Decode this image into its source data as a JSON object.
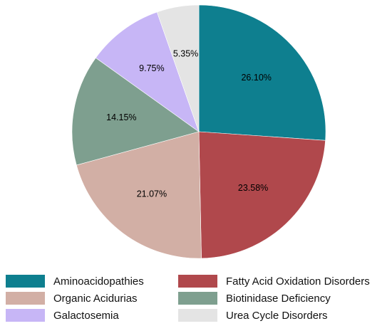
{
  "chart_data": {
    "type": "pie",
    "title": "",
    "slices": [
      {
        "label": "Aminoacidopathies",
        "value": 26.1,
        "value_label": "26.10%",
        "color": "#0e7f8f"
      },
      {
        "label": "Fatty Acid Oxidation Disorders",
        "value": 23.58,
        "value_label": "23.58%",
        "color": "#b0484c"
      },
      {
        "label": "Organic Acidurias",
        "value": 21.07,
        "value_label": "21.07%",
        "color": "#d2afa5"
      },
      {
        "label": "Biotinidase Deficiency",
        "value": 14.15,
        "value_label": "14.15%",
        "color": "#7e9f8f"
      },
      {
        "label": "Galactosemia",
        "value": 9.75,
        "value_label": "9.75%",
        "color": "#c7b6f6"
      },
      {
        "label": "Urea Cycle Disorders",
        "value": 5.35,
        "value_label": "5.35%",
        "color": "#e4e4e4"
      }
    ],
    "start_angle": "12 o'clock",
    "direction": "clockwise",
    "legend_position": "bottom"
  }
}
